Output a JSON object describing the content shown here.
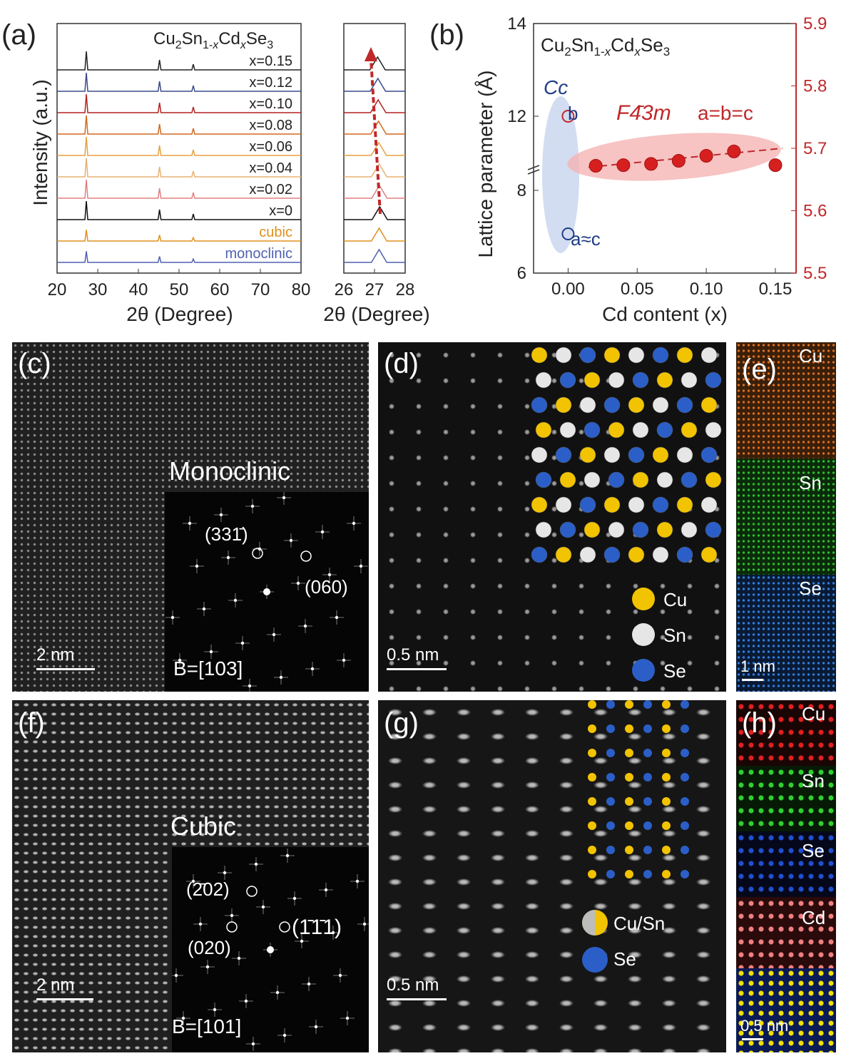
{
  "panel_a": {
    "label": "(a)",
    "ylabel": "Intensity (a.u.)",
    "xlabel_main": "2θ (Degree)",
    "xlabel_zoom": "2θ (Degree)",
    "compound": "Cu2Sn1-xCdxSe3",
    "series_labels": [
      "x=0.15",
      "x=0.12",
      "x=0.10",
      "x=0.08",
      "x=0.06",
      "x=0.04",
      "x=0.02",
      "x=0",
      "cubic",
      "monoclinic"
    ],
    "series_colors": [
      "#222222",
      "#3a4a8a",
      "#b22222",
      "#d2691e",
      "#e8a040",
      "#e8b070",
      "#e08080",
      "#111111",
      "#e09020",
      "#5060b0"
    ],
    "x_ticks_main": [
      "20",
      "30",
      "40",
      "50",
      "60",
      "70",
      "80"
    ],
    "x_ticks_zoom": [
      "26",
      "27",
      "28"
    ]
  },
  "chart_data": {
    "type": "scatter",
    "title": "Cu2Sn1-xCdxSe3",
    "xlabel": "Cd content (x)",
    "ylabel_left": "Lattice parameter (Å)",
    "ylim_right": [
      5.5,
      5.9
    ],
    "ylim_left": [
      6,
      14
    ],
    "x_ticks": [
      "0.00",
      "0.05",
      "0.10",
      "0.15"
    ],
    "y_ticks_left": [
      "6",
      "8",
      "12",
      "14"
    ],
    "y_ticks_right": [
      "5.5",
      "5.6",
      "5.7",
      "5.8",
      "5.9"
    ],
    "series": [
      {
        "name": "F-43m a=b=c",
        "x": [
          0.02,
          0.04,
          0.06,
          0.08,
          0.1,
          0.12,
          0.15
        ],
        "y": [
          5.672,
          5.673,
          5.675,
          5.68,
          5.688,
          5.695,
          5.673
        ]
      },
      {
        "name": "Cc b",
        "x": [
          0.0
        ],
        "y": [
          12.1
        ]
      },
      {
        "name": "Cc a≈c",
        "x": [
          0.0
        ],
        "y": [
          6.9
        ]
      }
    ]
  },
  "panel_b": {
    "label": "(b)",
    "cc_label": "Cc",
    "b_label": "b",
    "f43m_label": "F4̄3m",
    "abc_label": "a=b=c",
    "ac_label": "a≈c"
  },
  "panel_c": {
    "label": "(c)",
    "phase": "Monoclinic",
    "spot1": "(331̄)",
    "spot2": "(060)",
    "zone": "B=[103]",
    "scale": "2 nm"
  },
  "panel_d": {
    "label": "(d)",
    "scale": "0.5 nm",
    "legend": [
      "Cu",
      "Sn",
      "Se"
    ]
  },
  "panel_e": {
    "label": "(e)",
    "maps": [
      "Cu",
      "Sn",
      "Se"
    ],
    "scale": "1 nm"
  },
  "panel_f": {
    "label": "(f)",
    "phase": "Cubic",
    "spot1": "(2̄02)",
    "spot2": "(1̄1̄1)",
    "spot3": "(020)",
    "zone": "B=[101]",
    "scale": "2 nm"
  },
  "panel_g": {
    "label": "(g)",
    "scale": "0.5 nm",
    "legend": [
      "Cu/Sn",
      "Se"
    ]
  },
  "panel_h": {
    "label": "(h)",
    "maps": [
      "Cu",
      "Sn",
      "Se",
      "Cd"
    ],
    "scale": "0.5 nm"
  },
  "colors": {
    "red": "#c0282a",
    "blue": "#1f3c88",
    "cu": "#f2c300",
    "sn": "#e6e6e6",
    "se": "#2b5fc7"
  }
}
